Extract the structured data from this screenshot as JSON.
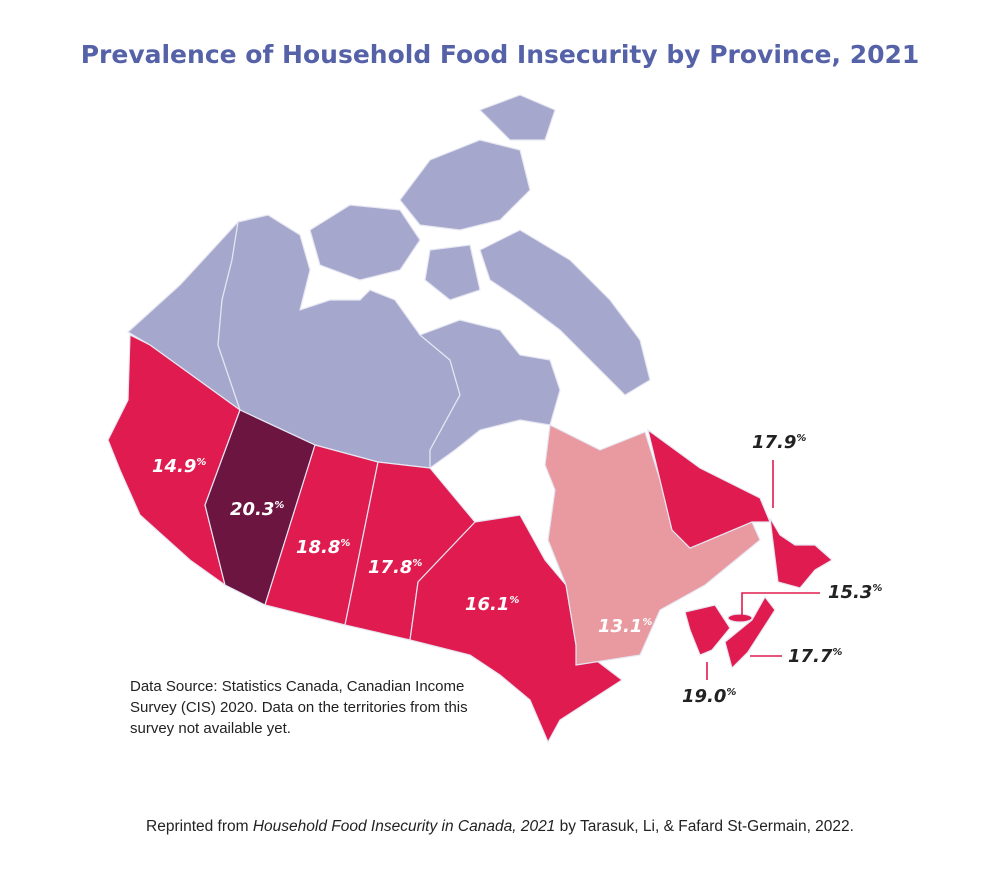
{
  "title": "Prevalence of Household Food Insecurity by Province, 2021",
  "colors": {
    "title": "#5562a8",
    "territories": "#a5a8cc",
    "high": "#e01b4f",
    "highest": "#6b1540",
    "lowest": "#e99aa0",
    "leader": "#e01b4f"
  },
  "provinces": {
    "bc": {
      "value": "14.9",
      "unit": "%"
    },
    "ab": {
      "value": "20.3",
      "unit": "%"
    },
    "sk": {
      "value": "18.8",
      "unit": "%"
    },
    "mb": {
      "value": "17.8",
      "unit": "%"
    },
    "on": {
      "value": "16.1",
      "unit": "%"
    },
    "qc": {
      "value": "13.1",
      "unit": "%"
    },
    "nl": {
      "value": "17.9",
      "unit": "%"
    },
    "pe": {
      "value": "15.3",
      "unit": "%"
    },
    "ns": {
      "value": "17.7",
      "unit": "%"
    },
    "nb": {
      "value": "19.0",
      "unit": "%"
    }
  },
  "source": "Data Source: Statistics Canada, Canadian Income Survey (CIS) 2020. Data on the territories from this survey not available yet.",
  "footer": {
    "prefix": "Reprinted from ",
    "italic": "Household Food Insecurity in Canada, 2021",
    "suffix": " by Tarasuk, Li, & Fafard St-Germain, 2022."
  }
}
